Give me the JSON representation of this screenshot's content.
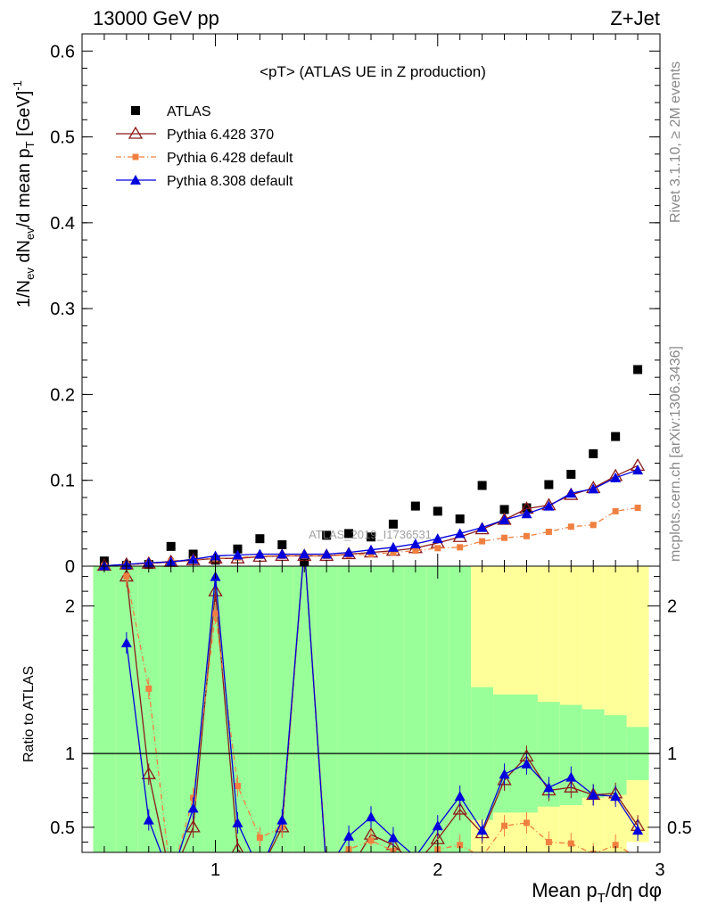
{
  "header": {
    "left_label": "13000 GeV pp",
    "right_label": "Z+Jet"
  },
  "side_labels": {
    "rivet": "Rivet 3.1.10, ≥ 2M events",
    "mcplots": "mcplots.cern.ch [arXiv:1306.3436]"
  },
  "watermark": "ATLAS_2019_I1736531",
  "colors": {
    "ATLAS": "#000000",
    "Pythia 6.428 370": "#8b1a1a",
    "Pythia 6.428 default": "#f08040",
    "Pythia 8.308 default": "#0000dd",
    "band_inner": "#99ff99",
    "band_outer": "#ffff99"
  },
  "chart_data": [
    {
      "type": "scatter",
      "title": "<pT> (ATLAS UE in Z production)",
      "xlabel": "Mean p_T/dη dφ",
      "ylabel": "1/N_ev dN_ev/d mean p_T [GeV]^-1",
      "xlim": [
        0.4,
        3.0
      ],
      "ylim": [
        0,
        0.62
      ],
      "y_ticks": [
        "0",
        "0.1",
        "0.2",
        "0.3",
        "0.4",
        "0.5",
        "0.6"
      ],
      "legend_position": "top-left",
      "x": [
        0.5,
        0.6,
        0.7,
        0.8,
        0.9,
        1.0,
        1.1,
        1.2,
        1.3,
        1.4,
        1.5,
        1.6,
        1.7,
        1.8,
        1.9,
        2.0,
        2.1,
        2.2,
        2.3,
        2.4,
        2.5,
        2.6,
        2.7,
        2.8,
        2.9
      ],
      "series": [
        {
          "name": "ATLAS",
          "values": [
            0.006,
            0.001,
            0.002,
            0.023,
            0.014,
            0.007,
            0.02,
            0.032,
            0.025,
            0.005,
            0.036,
            0.038,
            0.034,
            0.049,
            0.07,
            0.064,
            0.055,
            0.094,
            0.066,
            0.068,
            0.095,
            0.107,
            0.131,
            0.151,
            0.229
          ]
        },
        {
          "name": "Pythia 6.428 370",
          "values": [
            0.0005,
            0.002,
            0.003,
            0.005,
            0.007,
            0.009,
            0.009,
            0.011,
            0.012,
            0.012,
            0.012,
            0.014,
            0.016,
            0.018,
            0.021,
            0.027,
            0.034,
            0.043,
            0.054,
            0.067,
            0.071,
            0.083,
            0.091,
            0.105,
            0.117
          ]
        },
        {
          "name": "Pythia 6.428 default",
          "values": [
            0.0005,
            0.002,
            0.003,
            0.006,
            0.008,
            0.009,
            0.01,
            0.012,
            0.012,
            0.012,
            0.012,
            0.013,
            0.014,
            0.016,
            0.018,
            0.021,
            0.022,
            0.029,
            0.033,
            0.035,
            0.04,
            0.046,
            0.048,
            0.064,
            0.068
          ]
        },
        {
          "name": "Pythia 8.308 default",
          "values": [
            0.0005,
            0.002,
            0.004,
            0.005,
            0.008,
            0.012,
            0.013,
            0.014,
            0.014,
            0.014,
            0.014,
            0.016,
            0.019,
            0.022,
            0.026,
            0.032,
            0.038,
            0.045,
            0.054,
            0.061,
            0.07,
            0.085,
            0.09,
            0.103,
            0.112
          ]
        }
      ]
    },
    {
      "type": "line",
      "ylabel": "Ratio to ATLAS",
      "xlabel": "Mean p_T/dη dφ",
      "xlim": [
        0.4,
        3.0
      ],
      "ylim": [
        0.33,
        2.27
      ],
      "x_ticks": [
        "1",
        "2",
        "3"
      ],
      "y_ticks": [
        "0.5",
        "1",
        "2"
      ],
      "reference_line": 1,
      "x": [
        0.6,
        0.7,
        0.8,
        0.9,
        1.0,
        1.1,
        1.2,
        1.3,
        1.4,
        1.5,
        1.6,
        1.7,
        1.8,
        1.9,
        2.0,
        2.1,
        2.2,
        2.3,
        2.4,
        2.5,
        2.6,
        2.7,
        2.8,
        2.9
      ],
      "series": [
        {
          "name": "Pythia 6.428 370",
          "values": [
            2.2,
            0.86,
            0.15,
            0.5,
            2.1,
            0.35,
            0.2,
            0.5,
            2.4,
            0.2,
            0.2,
            0.45,
            0.38,
            0.25,
            0.42,
            0.62,
            0.46,
            0.82,
            0.98,
            0.75,
            0.77,
            0.72,
            0.73,
            0.51
          ]
        },
        {
          "name": "Pythia 6.428 default",
          "values": [
            2.2,
            1.44,
            0.15,
            0.7,
            1.95,
            0.78,
            0.43,
            0.5,
            2.4,
            0.25,
            0.35,
            0.41,
            0.34,
            0.26,
            0.35,
            0.38,
            0.3,
            0.51,
            0.53,
            0.4,
            0.39,
            0.32,
            0.38,
            0.3
          ]
        },
        {
          "name": "Pythia 8.308 default",
          "values": [
            1.75,
            0.55,
            0.15,
            0.63,
            2.2,
            0.53,
            0.2,
            0.55,
            2.4,
            0.2,
            0.44,
            0.57,
            0.43,
            0.3,
            0.51,
            0.71,
            0.48,
            0.86,
            0.93,
            0.77,
            0.84,
            0.72,
            0.71,
            0.48
          ]
        }
      ],
      "bands": {
        "x_edges": [
          0.45,
          0.55,
          0.65,
          0.75,
          0.85,
          0.95,
          1.05,
          1.15,
          1.25,
          1.35,
          1.45,
          1.55,
          1.65,
          1.75,
          1.85,
          1.95,
          2.05,
          2.15,
          2.25,
          2.35,
          2.45,
          2.55,
          2.65,
          2.75,
          2.85,
          2.95
        ],
        "inner_low": [
          0.2,
          0.2,
          0.2,
          0.2,
          0.2,
          0.2,
          0.2,
          0.2,
          0.2,
          0.2,
          0.2,
          0.2,
          0.2,
          0.2,
          0.2,
          0.2,
          0.2,
          0.55,
          0.6,
          0.6,
          0.64,
          0.65,
          0.7,
          0.72,
          0.82
        ],
        "inner_high": [
          2.5,
          2.5,
          2.5,
          2.5,
          2.5,
          2.5,
          2.5,
          2.5,
          2.5,
          2.5,
          2.5,
          2.5,
          2.5,
          2.5,
          2.5,
          2.5,
          2.5,
          1.45,
          1.4,
          1.4,
          1.35,
          1.33,
          1.3,
          1.26,
          1.18
        ],
        "outer_low": [
          0.2,
          0.2,
          0.2,
          0.2,
          0.2,
          0.2,
          0.2,
          0.2,
          0.2,
          0.2,
          0.2,
          0.2,
          0.2,
          0.2,
          0.2,
          0.2,
          0.2,
          0.2,
          0.2,
          0.2,
          0.2,
          0.2,
          0.2,
          0.3,
          0.4
        ],
        "outer_high": [
          2.5,
          2.5,
          2.5,
          2.5,
          2.5,
          2.5,
          2.5,
          2.5,
          2.5,
          2.5,
          2.5,
          2.5,
          2.5,
          2.5,
          2.5,
          2.5,
          2.5,
          2.5,
          2.5,
          2.5,
          2.5,
          2.5,
          2.5,
          2.5,
          2.5
        ]
      }
    }
  ]
}
